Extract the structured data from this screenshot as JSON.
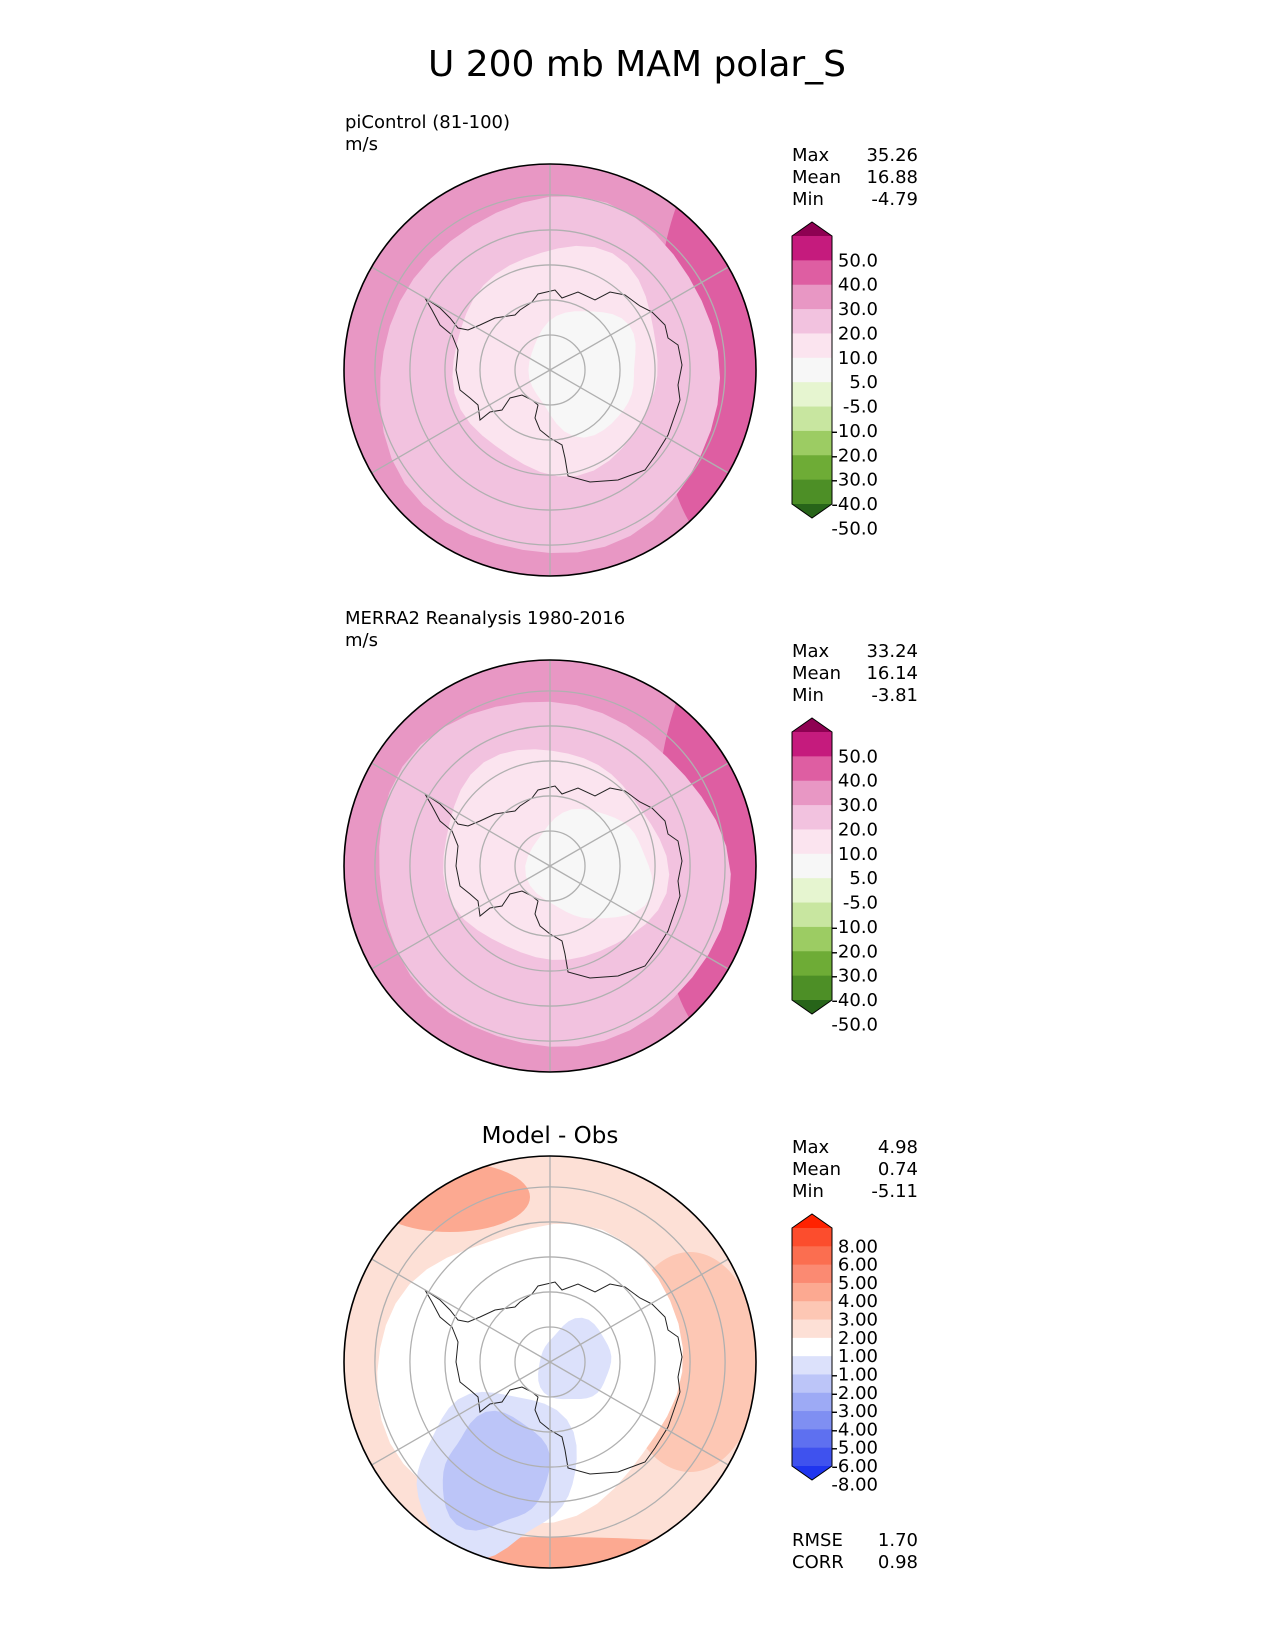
{
  "figure": {
    "title": "U 200 mb MAM polar_S"
  },
  "panels": [
    {
      "id": "test",
      "label_line1": "piControl (81-100)",
      "label_line2": "m/s",
      "heading": "",
      "stats": [
        {
          "name": "Max",
          "value": "35.26"
        },
        {
          "name": "Mean",
          "value": "16.88"
        },
        {
          "name": "Min",
          "value": "-4.79"
        }
      ],
      "colorbar": {
        "labels": [
          "50.0",
          "40.0",
          "30.0",
          "20.0",
          "10.0",
          "5.0",
          "-5.0",
          "-10.0",
          "-20.0",
          "-30.0",
          "-40.0",
          "-50.0"
        ],
        "colors": [
          "#8e0152",
          "#c51b7d",
          "#de5ea2",
          "#e897c4",
          "#f2c2df",
          "#fbe4ef",
          "#f7f7f7",
          "#e6f5d0",
          "#c8e6a0",
          "#9ccc63",
          "#6eac36",
          "#4d8f26",
          "#276419"
        ]
      },
      "metrics": []
    },
    {
      "id": "reference",
      "label_line1": "MERRA2 Reanalysis 1980-2016",
      "label_line2": "m/s",
      "heading": "",
      "stats": [
        {
          "name": "Max",
          "value": "33.24"
        },
        {
          "name": "Mean",
          "value": "16.14"
        },
        {
          "name": "Min",
          "value": "-3.81"
        }
      ],
      "colorbar": {
        "labels": [
          "50.0",
          "40.0",
          "30.0",
          "20.0",
          "10.0",
          "5.0",
          "-5.0",
          "-10.0",
          "-20.0",
          "-30.0",
          "-40.0",
          "-50.0"
        ],
        "colors": [
          "#8e0152",
          "#c51b7d",
          "#de5ea2",
          "#e897c4",
          "#f2c2df",
          "#fbe4ef",
          "#f7f7f7",
          "#e6f5d0",
          "#c8e6a0",
          "#9ccc63",
          "#6eac36",
          "#4d8f26",
          "#276419"
        ]
      },
      "metrics": []
    },
    {
      "id": "diff",
      "label_line1": "",
      "label_line2": "",
      "heading": "Model - Obs",
      "stats": [
        {
          "name": "Max",
          "value": "4.98"
        },
        {
          "name": "Mean",
          "value": "0.74"
        },
        {
          "name": "Min",
          "value": "-5.11"
        }
      ],
      "colorbar": {
        "labels": [
          "8.00",
          "6.00",
          "5.00",
          "4.00",
          "3.00",
          "2.00",
          "1.00",
          "-1.00",
          "-2.00",
          "-3.00",
          "-4.00",
          "-5.00",
          "-6.00",
          "-8.00"
        ],
        "colors": [
          "#ff2200",
          "#fc4d2d",
          "#fb6e50",
          "#fb8a72",
          "#fca991",
          "#fdc7b4",
          "#fde0d6",
          "#ffffff",
          "#dce1fb",
          "#bcc5f8",
          "#9daaf5",
          "#7f8ff2",
          "#5e70f0",
          "#3f52ee",
          "#1f35ef"
        ]
      },
      "metrics": [
        {
          "name": "RMSE",
          "value": "1.70"
        },
        {
          "name": "CORR",
          "value": "0.98"
        }
      ]
    }
  ]
}
